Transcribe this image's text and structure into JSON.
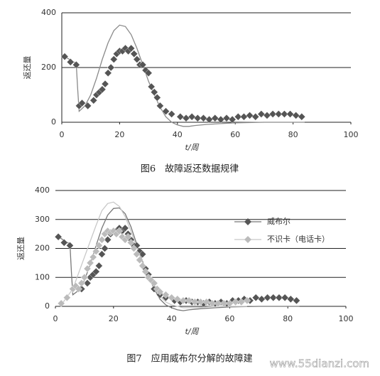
{
  "chart_data": [
    {
      "type": "scatter",
      "title": "图6　故障返还数据规律",
      "x_label": "t/周",
      "y_label": "返还量",
      "xlim": [
        0,
        100
      ],
      "xticks": [
        0,
        20,
        40,
        60,
        80,
        100
      ],
      "ylim": [
        0,
        400
      ],
      "yticks": [
        0,
        200,
        400
      ],
      "grid": true,
      "series": [
        {
          "color": "#555555",
          "line_color": "#8a8a8a",
          "x": [
            1,
            3,
            5,
            6,
            7,
            9,
            11,
            12,
            13,
            14,
            15,
            16,
            17,
            18,
            19,
            20,
            21,
            22,
            23,
            24,
            25,
            26,
            27,
            28,
            29,
            30,
            31,
            32,
            33,
            34,
            36,
            38,
            41,
            43,
            45,
            47,
            49,
            51,
            53,
            55,
            57,
            59,
            61,
            63,
            65,
            67,
            69,
            71,
            73,
            75,
            77,
            79,
            81,
            83
          ],
          "values": [
            240,
            220,
            210,
            60,
            70,
            60,
            80,
            100,
            110,
            120,
            140,
            180,
            200,
            230,
            250,
            260,
            260,
            270,
            260,
            270,
            250,
            230,
            210,
            210,
            190,
            180,
            130,
            110,
            90,
            60,
            40,
            30,
            20,
            15,
            20,
            15,
            15,
            10,
            15,
            10,
            15,
            10,
            20,
            20,
            25,
            20,
            30,
            25,
            30,
            30,
            30,
            30,
            25,
            20
          ],
          "fit": {
            "x": [
              1,
              5,
              5.5,
              6,
              8,
              10,
              12,
              14,
              16,
              18,
              20,
              22,
              24,
              26,
              28,
              30,
              32,
              34,
              36,
              38,
              40,
              42,
              44,
              46,
              50,
              55,
              60,
              70,
              80,
              84
            ],
            "values": [
              240,
              215,
              120,
              40,
              60,
              100,
              160,
              230,
              290,
              335,
              355,
              350,
              320,
              270,
              210,
              150,
              100,
              55,
              20,
              0,
              -10,
              -15,
              -15,
              -12,
              -8,
              -5,
              -2,
              0,
              0,
              0
            ]
          }
        }
      ]
    },
    {
      "type": "scatter",
      "title": "图7　应用威布尔分解的故障建",
      "x_label": "t/周",
      "y_label": "返还量",
      "xlim": [
        0,
        100
      ],
      "xticks": [
        0,
        20,
        40,
        60,
        80,
        100
      ],
      "ylim": [
        0,
        400
      ],
      "yticks": [
        0,
        100,
        200,
        300,
        400
      ],
      "grid": true,
      "legend": "right",
      "series": [
        {
          "name": "威布尔",
          "color": "#555555",
          "line_color": "#777777",
          "x": [
            1,
            3,
            5,
            6,
            7,
            9,
            11,
            12,
            13,
            14,
            15,
            16,
            17,
            18,
            19,
            20,
            21,
            22,
            23,
            24,
            25,
            26,
            27,
            28,
            29,
            30,
            31,
            32,
            33,
            34,
            36,
            38,
            41,
            43,
            45,
            47,
            49,
            51,
            53,
            55,
            57,
            59,
            61,
            63,
            65,
            67,
            69,
            71,
            73,
            75,
            77,
            79,
            81,
            83
          ],
          "values": [
            240,
            220,
            210,
            60,
            70,
            60,
            80,
            100,
            110,
            120,
            140,
            180,
            200,
            230,
            250,
            260,
            260,
            270,
            260,
            270,
            250,
            230,
            210,
            210,
            190,
            180,
            130,
            110,
            90,
            60,
            40,
            30,
            20,
            15,
            20,
            15,
            15,
            10,
            15,
            10,
            15,
            10,
            20,
            20,
            25,
            20,
            30,
            25,
            30,
            30,
            30,
            30,
            25,
            20
          ],
          "fit": {
            "x": [
              1,
              5,
              5.5,
              6,
              8,
              10,
              12,
              14,
              16,
              18,
              20,
              22,
              24,
              26,
              28,
              30,
              32,
              34,
              36,
              38,
              40,
              42,
              44,
              46,
              50,
              55,
              60,
              70,
              80,
              84
            ],
            "values": [
              240,
              215,
              120,
              40,
              55,
              90,
              145,
              210,
              270,
              315,
              338,
              340,
              320,
              275,
              215,
              155,
              105,
              60,
              25,
              5,
              -5,
              -12,
              -15,
              -12,
              -8,
              -5,
              -2,
              0,
              0,
              0
            ]
          }
        },
        {
          "name": "不识卡（电话卡）",
          "color": "#bbbbbb",
          "line_color": "#c8c8c8",
          "x": [
            2,
            4,
            6,
            7,
            8,
            9,
            10,
            11,
            12,
            13,
            14,
            15,
            16,
            17,
            18,
            19,
            20,
            21,
            22,
            23,
            24,
            25,
            26,
            27,
            28,
            29,
            30,
            31,
            32,
            33,
            34,
            35,
            36,
            38,
            40,
            42,
            44,
            46,
            48,
            50,
            52,
            54,
            56,
            58,
            60,
            62,
            64,
            66
          ],
          "values": [
            10,
            30,
            60,
            70,
            60,
            80,
            100,
            130,
            150,
            170,
            190,
            210,
            230,
            250,
            260,
            255,
            260,
            250,
            260,
            240,
            230,
            240,
            220,
            200,
            180,
            160,
            140,
            120,
            100,
            90,
            80,
            60,
            50,
            40,
            30,
            25,
            20,
            20,
            15,
            15,
            15,
            10,
            10,
            10,
            10,
            15,
            15,
            20
          ],
          "fit": {
            "x": [
              2,
              6,
              10,
              14,
              16,
              18,
              20,
              22,
              24,
              26,
              28,
              30,
              32,
              34,
              36,
              38,
              40,
              44,
              48,
              55,
              60,
              66
            ],
            "values": [
              5,
              60,
              170,
              280,
              330,
              355,
              360,
              345,
              310,
              260,
              205,
              150,
              105,
              65,
              35,
              15,
              5,
              -5,
              -5,
              0,
              0,
              0
            ]
          }
        }
      ]
    }
  ],
  "watermark": "www.55dianzi.com"
}
